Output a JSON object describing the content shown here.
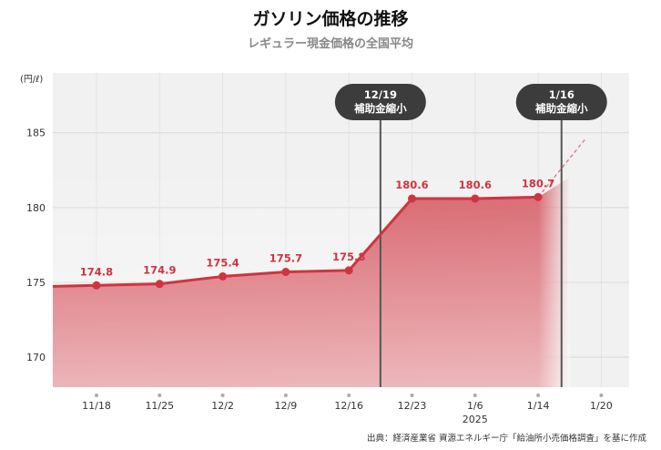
{
  "header": {
    "title": "ガソリン価格の推移",
    "subtitle": "レギュラー現金価格の全国平均"
  },
  "footer": {
    "source": "出典：経済産業省 資源エネルギー庁「給油所小売価格調査」を基に作成"
  },
  "colors": {
    "line": "#d0343e",
    "fill": "#d55a63",
    "plot_bg": "#f1f1f1",
    "marker_line": "#555555",
    "callout_bg": "#3c3c3c"
  },
  "chart_data": {
    "type": "line",
    "title": "ガソリン価格の推移",
    "subtitle": "レギュラー現金価格の全国平均",
    "ylabel": "(円/ℓ)",
    "ylim": [
      168,
      189
    ],
    "yticks": [
      170,
      175,
      180,
      185
    ],
    "ytick_labels": [
      "170",
      "175",
      "180",
      "185"
    ],
    "categories": [
      "11/18",
      "11/25",
      "12/2",
      "12/9",
      "12/16",
      "12/23",
      "1/6",
      "1/14",
      "1/20"
    ],
    "year_label": "2025",
    "series": [
      {
        "values": [
          174.8,
          174.9,
          175.4,
          175.7,
          175.8,
          180.6,
          180.6,
          180.7,
          null
        ],
        "labels": [
          "174.8",
          "174.9",
          "175.4",
          "175.7",
          "175.8",
          "180.6",
          "180.6",
          "180.7",
          ""
        ]
      }
    ],
    "annotations": [
      {
        "date": "12/19",
        "text": "補助金縮小"
      },
      {
        "date": "1/16",
        "text": "補助金縮小"
      }
    ],
    "legend": "none",
    "grid": true
  }
}
